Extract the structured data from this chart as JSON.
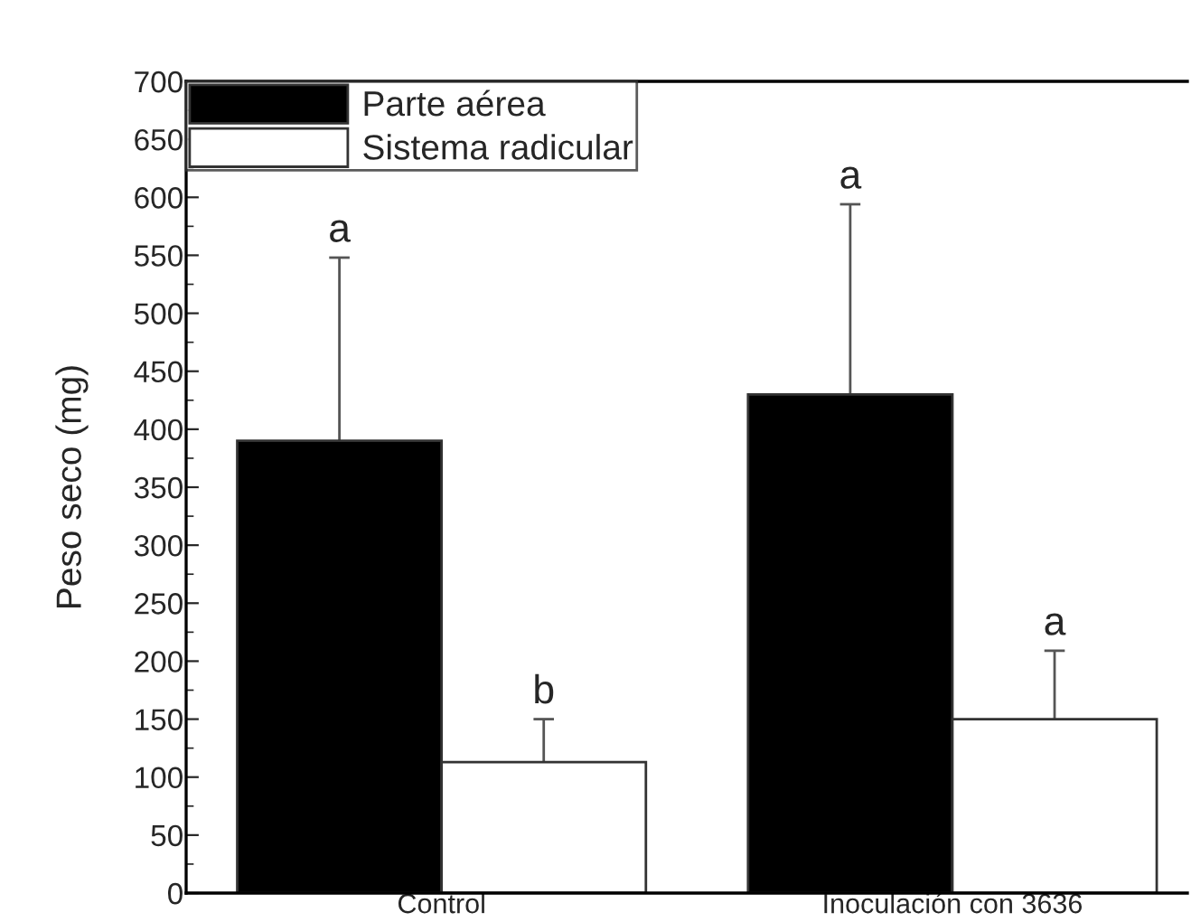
{
  "chart_data": {
    "type": "bar",
    "ylabel": "Peso seco (mg)",
    "categories": [
      "Control",
      "Inoculación con 3636"
    ],
    "series": [
      {
        "name": "Parte aérea",
        "color": "#000000",
        "values": [
          390,
          430
        ],
        "errors": [
          [
            390,
            548
          ],
          [
            430,
            594
          ]
        ]
      },
      {
        "name": "Sistema radicular",
        "color": "#ffffff",
        "values": [
          113,
          150
        ],
        "errors": [
          [
            113,
            150
          ],
          [
            150,
            209
          ]
        ]
      }
    ],
    "annotations": [
      "a",
      "b",
      "a",
      "a"
    ],
    "ylim": [
      0,
      700
    ],
    "yticks": [
      0,
      50,
      100,
      150,
      200,
      250,
      300,
      350,
      400,
      450,
      500,
      550,
      600,
      650,
      700
    ],
    "grid": false,
    "legend": "top left"
  }
}
